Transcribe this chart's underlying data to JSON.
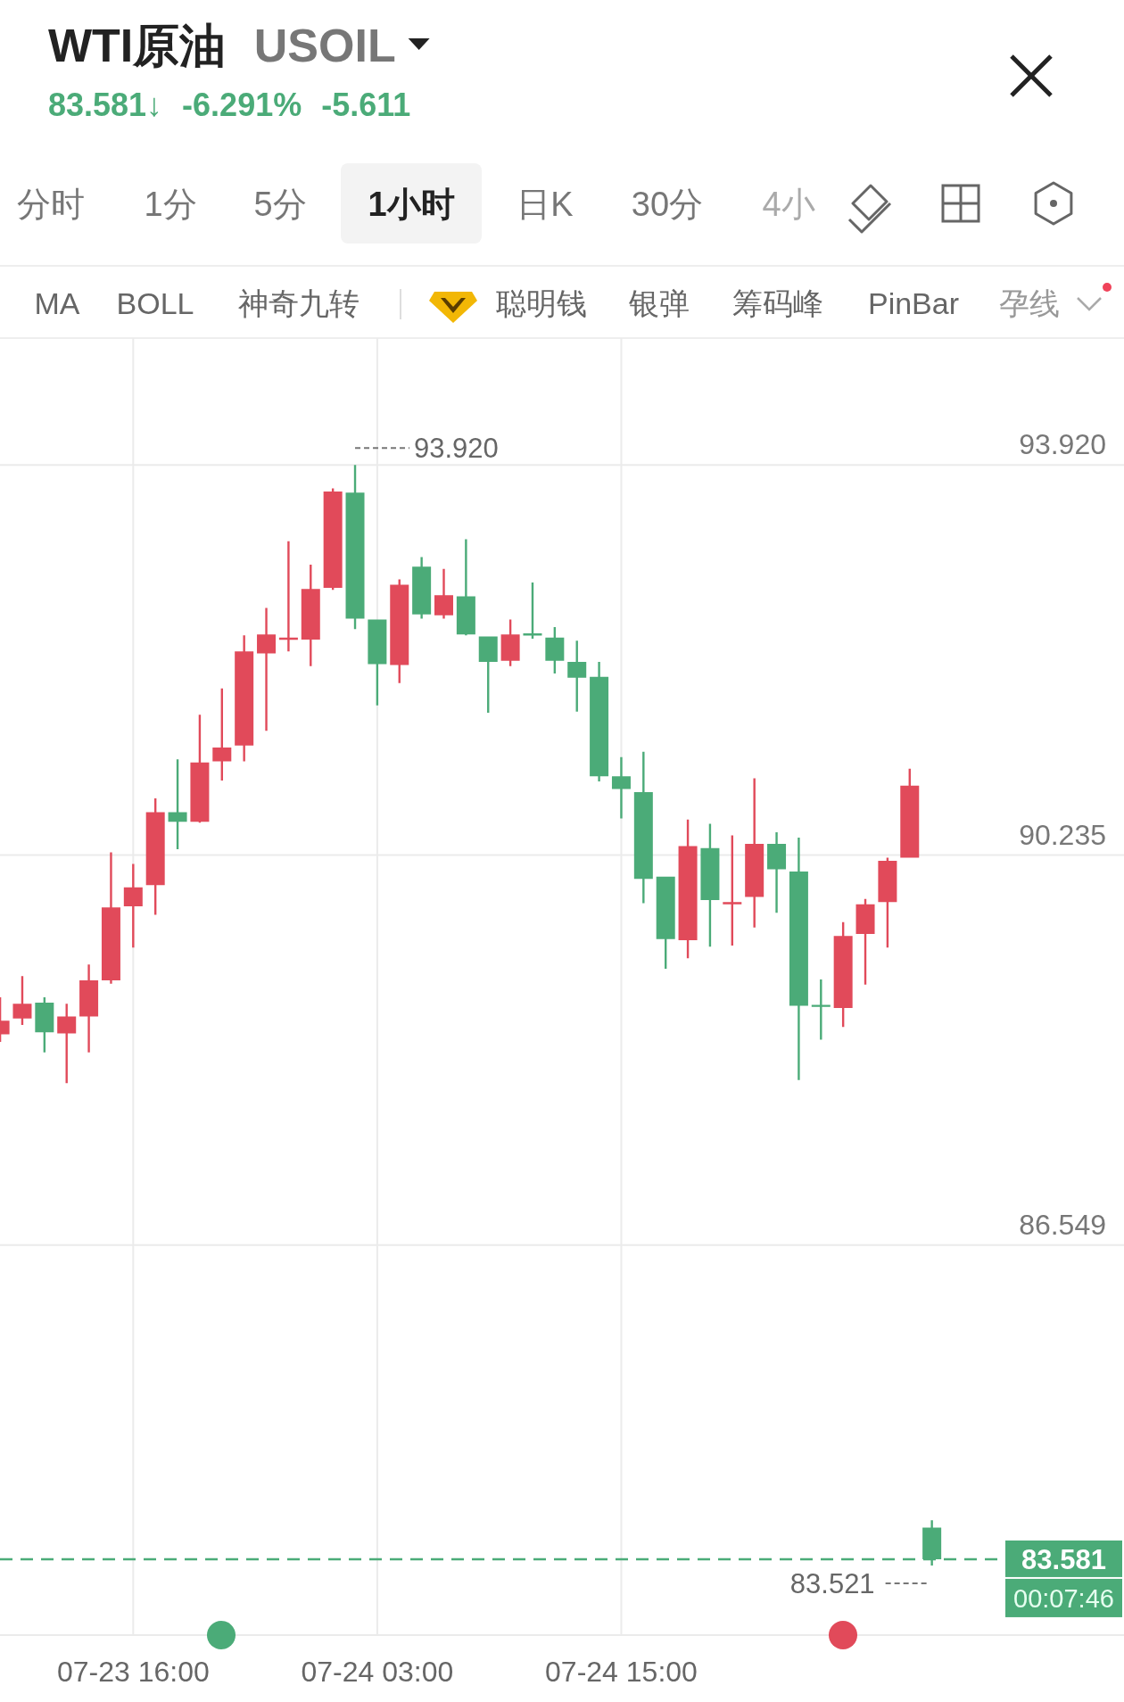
{
  "chart_data": {
    "type": "candlestick",
    "title": "WTI原油 USOIL",
    "subtitle": "83.581↓ -6.291% -5.611",
    "categories": [
      null,
      null,
      null,
      null,
      null,
      null,
      "07-23 16:00",
      null,
      null,
      null,
      null,
      null,
      null,
      null,
      null,
      null,
      null,
      "07-24 03:00",
      null,
      null,
      null,
      null,
      null,
      null,
      null,
      null,
      null,
      null,
      "07-24 15:00",
      null,
      null,
      null,
      null,
      null,
      null,
      null,
      null,
      null,
      null,
      null,
      null,
      null,
      null
    ],
    "ohlc": [
      [
        88.54,
        88.89,
        88.47,
        88.67
      ],
      [
        88.69,
        89.09,
        88.63,
        88.83
      ],
      [
        88.84,
        88.89,
        88.37,
        88.56
      ],
      [
        88.55,
        88.83,
        88.08,
        88.71
      ],
      [
        88.71,
        89.2,
        88.37,
        89.05
      ],
      [
        89.05,
        90.26,
        89.02,
        89.74
      ],
      [
        89.75,
        90.15,
        89.36,
        89.93
      ],
      [
        89.95,
        90.77,
        89.67,
        90.64
      ],
      [
        90.64,
        91.14,
        90.29,
        90.55
      ],
      [
        90.55,
        91.56,
        90.54,
        91.11
      ],
      [
        91.12,
        91.81,
        90.94,
        91.25
      ],
      [
        91.27,
        92.31,
        91.12,
        92.16
      ],
      [
        92.14,
        92.57,
        91.41,
        92.32
      ],
      [
        92.28,
        93.2,
        92.16,
        92.28
      ],
      [
        92.27,
        92.98,
        92.02,
        92.75
      ],
      [
        92.76,
        93.7,
        92.74,
        93.67
      ],
      [
        93.66,
        93.92,
        92.37,
        92.47
      ],
      [
        92.46,
        92.46,
        91.65,
        92.04
      ],
      [
        92.03,
        92.84,
        91.86,
        92.79
      ],
      [
        92.96,
        93.05,
        92.47,
        92.51
      ],
      [
        92.5,
        92.94,
        92.47,
        92.69
      ],
      [
        92.68,
        93.22,
        92.31,
        92.32
      ],
      [
        92.3,
        92.3,
        91.58,
        92.06
      ],
      [
        92.07,
        92.46,
        92.02,
        92.32
      ],
      [
        92.32,
        92.81,
        92.28,
        92.32
      ],
      [
        92.29,
        92.39,
        91.95,
        92.07
      ],
      [
        92.06,
        92.26,
        91.59,
        91.91
      ],
      [
        91.92,
        92.06,
        90.93,
        90.98
      ],
      [
        90.98,
        91.16,
        90.58,
        90.86
      ],
      [
        90.83,
        91.21,
        89.78,
        90.01
      ],
      [
        90.03,
        90.03,
        89.16,
        89.44
      ],
      [
        89.43,
        90.57,
        89.26,
        90.32
      ],
      [
        90.3,
        90.53,
        89.37,
        89.81
      ],
      [
        89.78,
        90.42,
        89.38,
        89.78
      ],
      [
        89.84,
        90.96,
        89.55,
        90.34
      ],
      [
        90.34,
        90.45,
        89.69,
        90.1
      ],
      [
        90.08,
        90.4,
        88.11,
        88.81
      ],
      [
        88.81,
        89.06,
        88.49,
        88.81
      ],
      [
        88.79,
        89.6,
        88.61,
        89.47
      ],
      [
        89.49,
        89.82,
        89.01,
        89.77
      ],
      [
        89.79,
        90.21,
        89.36,
        90.18
      ],
      [
        90.21,
        91.05,
        90.21,
        90.89
      ],
      [
        83.88,
        83.95,
        83.521,
        83.581
      ]
    ],
    "colors": [
      "#e14a5a",
      "#e14a5a",
      "#4bab78",
      "#e14a5a",
      "#e14a5a",
      "#e14a5a",
      "#e14a5a",
      "#e14a5a",
      "#4bab78",
      "#e14a5a",
      "#e14a5a",
      "#e14a5a",
      "#e14a5a",
      "#e14a5a",
      "#e14a5a",
      "#e14a5a",
      "#4bab78",
      "#4bab78",
      "#e14a5a",
      "#4bab78",
      "#e14a5a",
      "#4bab78",
      "#4bab78",
      "#e14a5a",
      "#4bab78",
      "#4bab78",
      "#4bab78",
      "#4bab78",
      "#4bab78",
      "#4bab78",
      "#4bab78",
      "#e14a5a",
      "#4bab78",
      "#e14a5a",
      "#e14a5a",
      "#4bab78",
      "#4bab78",
      "#4bab78",
      "#e14a5a",
      "#e14a5a",
      "#e14a5a",
      "#e14a5a",
      "#4bab78"
    ],
    "ylim": [
      82.864,
      95.12
    ],
    "yticks": [
      {
        "value": 93.92,
        "label": "93.920"
      },
      90.235,
      86.549,
      {
        "value": 82.864,
        "label": null
      }
    ],
    "grid": true,
    "ref_lines": [
      {
        "axis": "y",
        "value": 83.581,
        "label": "83.581",
        "color": "#4bab78",
        "line_style": "dashed"
      }
    ],
    "annotations": [
      "分时",
      "1分",
      "5分",
      "1小时",
      "日K",
      "30分",
      "4小",
      "MA",
      "BOLL",
      "神奇九转",
      "聪明钱",
      "银弹",
      "筹码峰",
      "PinBar",
      "孕线",
      "93.920",
      "83.521",
      "00:07:46"
    ]
  }
}
